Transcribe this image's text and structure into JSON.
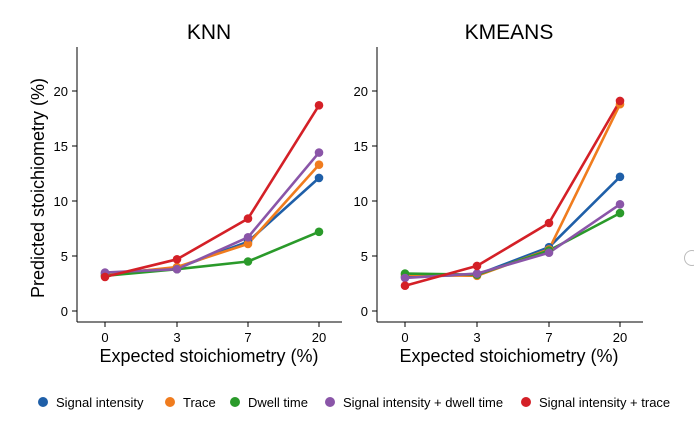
{
  "chart_data": [
    {
      "type": "line",
      "title": "KNN",
      "xlabel": "Expected stoichiometry (%)",
      "ylabel": "Predicted stoichiometry (%)",
      "categories": [
        "0",
        "3",
        "7",
        "20"
      ],
      "ylim": [
        -1,
        24
      ],
      "yticks": [
        0,
        5,
        10,
        15,
        20
      ],
      "grid": false,
      "series": [
        {
          "name": "Signal intensity",
          "color": "#1f5fa8",
          "values": [
            3.4,
            3.9,
            6.3,
            12.1
          ]
        },
        {
          "name": "Trace",
          "color": "#f07c1e",
          "values": [
            3.3,
            4.0,
            6.1,
            13.3
          ]
        },
        {
          "name": "Dwell time",
          "color": "#2a9a2a",
          "values": [
            3.2,
            3.8,
            4.5,
            7.2
          ]
        },
        {
          "name": "Signal intensity + dwell time",
          "color": "#8a55a8",
          "values": [
            3.5,
            3.8,
            6.7,
            14.4
          ]
        },
        {
          "name": "Signal intensity + trace",
          "color": "#d42027",
          "values": [
            3.1,
            4.7,
            8.4,
            18.7
          ]
        }
      ]
    },
    {
      "type": "line",
      "title": "KMEANS",
      "xlabel": "Expected stoichiometry (%)",
      "ylabel": "",
      "categories": [
        "0",
        "3",
        "7",
        "20"
      ],
      "ylim": [
        -1,
        24
      ],
      "yticks": [
        0,
        5,
        10,
        15,
        20
      ],
      "grid": false,
      "series": [
        {
          "name": "Signal intensity",
          "color": "#1f5fa8",
          "values": [
            3.1,
            3.3,
            5.8,
            12.2
          ]
        },
        {
          "name": "Trace",
          "color": "#f07c1e",
          "values": [
            3.3,
            3.2,
            5.6,
            18.8
          ]
        },
        {
          "name": "Dwell time",
          "color": "#2a9a2a",
          "values": [
            3.4,
            3.3,
            5.5,
            8.9
          ]
        },
        {
          "name": "Signal intensity + dwell time",
          "color": "#8a55a8",
          "values": [
            3.0,
            3.4,
            5.3,
            9.7
          ]
        },
        {
          "name": "Signal intensity + trace",
          "color": "#d42027",
          "values": [
            2.3,
            4.1,
            8.0,
            19.1
          ]
        }
      ]
    }
  ],
  "legend": {
    "position": "bottom",
    "items": [
      {
        "label": "Signal intensity",
        "color": "#1f5fa8"
      },
      {
        "label": "Trace",
        "color": "#f07c1e"
      },
      {
        "label": "Dwell time",
        "color": "#2a9a2a"
      },
      {
        "label": "Signal intensity + dwell time",
        "color": "#8a55a8"
      },
      {
        "label": "Signal intensity + trace",
        "color": "#d42027"
      }
    ]
  }
}
